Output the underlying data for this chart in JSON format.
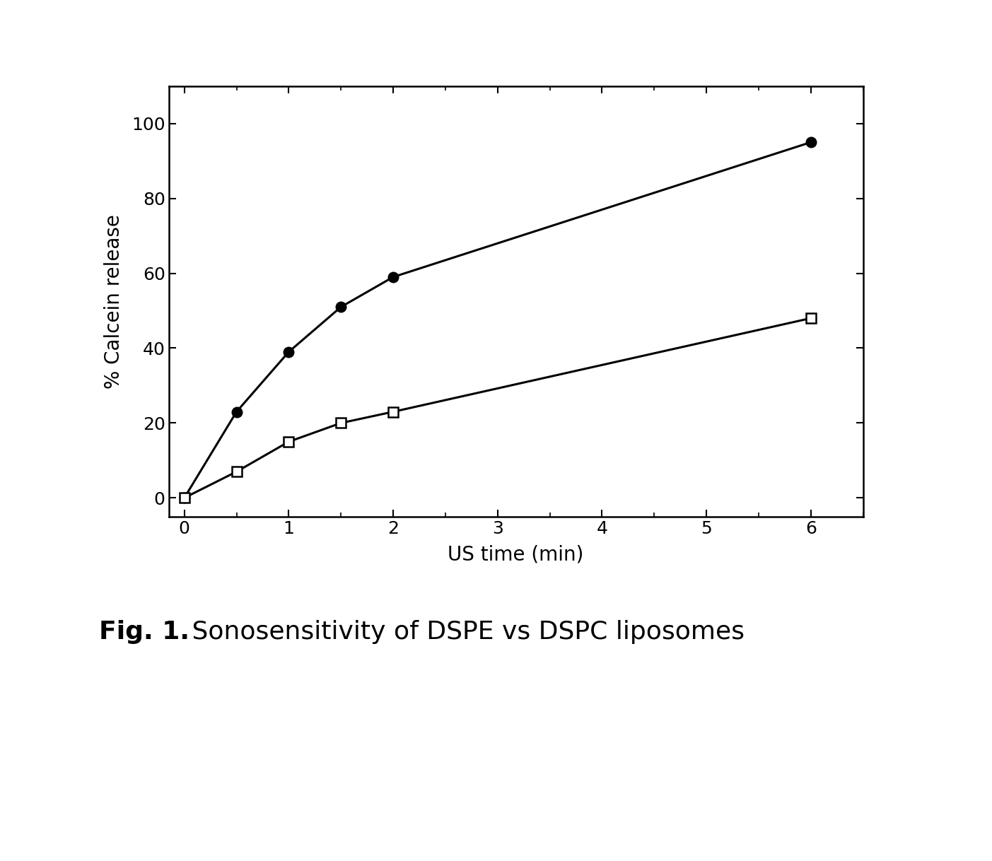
{
  "series1_x": [
    0,
    0.5,
    1.0,
    1.5,
    2.0,
    6.0
  ],
  "series1_y": [
    0,
    23,
    39,
    51,
    59,
    95
  ],
  "series2_x": [
    0,
    0.5,
    1.0,
    1.5,
    2.0,
    6.0
  ],
  "series2_y": [
    0,
    7,
    15,
    20,
    23,
    48
  ],
  "xlabel": "US time (min)",
  "ylabel": "% Calcein release",
  "xlim": [
    -0.15,
    6.5
  ],
  "ylim": [
    -5,
    110
  ],
  "xticks": [
    0,
    1,
    2,
    3,
    4,
    5,
    6
  ],
  "yticks": [
    0,
    20,
    40,
    60,
    80,
    100
  ],
  "caption_bold": "Fig. 1.",
  "caption_normal": " Sonosensitivity of DSPE vs DSPC liposomes",
  "background_color": "#ffffff",
  "line_color": "#000000",
  "fig_width": 14.03,
  "fig_height": 12.18,
  "dpi": 100
}
